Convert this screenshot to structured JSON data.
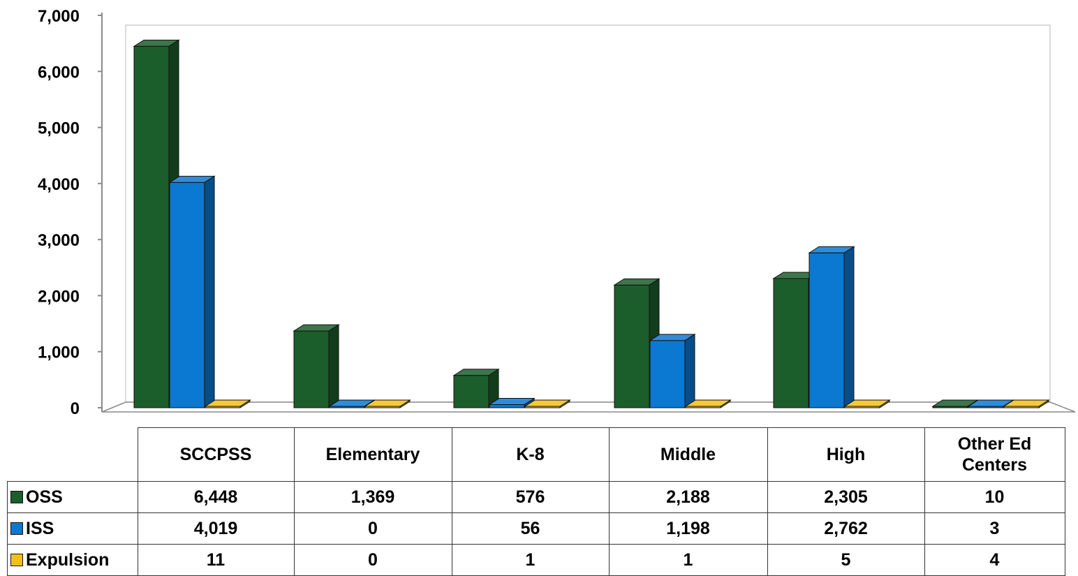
{
  "chart_data": {
    "type": "bar",
    "subtype": "3d-clustered",
    "categories": [
      "SCCPSS",
      "Elementary",
      "K-8",
      "Middle",
      "High",
      "Other Ed Centers"
    ],
    "series": [
      {
        "name": "OSS",
        "color": "#1b5e2b",
        "values": [
          6448,
          1369,
          576,
          2188,
          2305,
          10
        ]
      },
      {
        "name": "ISS",
        "color": "#0b78d1",
        "values": [
          4019,
          0,
          56,
          1198,
          2762,
          3
        ]
      },
      {
        "name": "Expulsion",
        "color": "#f2c018",
        "values": [
          11,
          0,
          1,
          1,
          5,
          4
        ]
      }
    ],
    "ylim": [
      0,
      7000
    ],
    "yticks": [
      "0",
      "1,000",
      "2,000",
      "3,000",
      "4,000",
      "5,000",
      "6,000",
      "7,000"
    ],
    "table": {
      "headers": [
        "SCCPSS",
        "Elementary",
        "K-8",
        "Middle",
        "High",
        "Other Ed Centers"
      ],
      "rows": [
        {
          "label": "OSS",
          "values": [
            "6,448",
            "1,369",
            "576",
            "2,188",
            "2,305",
            "10"
          ]
        },
        {
          "label": "ISS",
          "values": [
            "4,019",
            "0",
            "56",
            "1,198",
            "2,762",
            "3"
          ]
        },
        {
          "label": "Expulsion",
          "values": [
            "11",
            "0",
            "1",
            "1",
            "5",
            "4"
          ]
        }
      ]
    },
    "grid": false,
    "legend": "data-table"
  }
}
